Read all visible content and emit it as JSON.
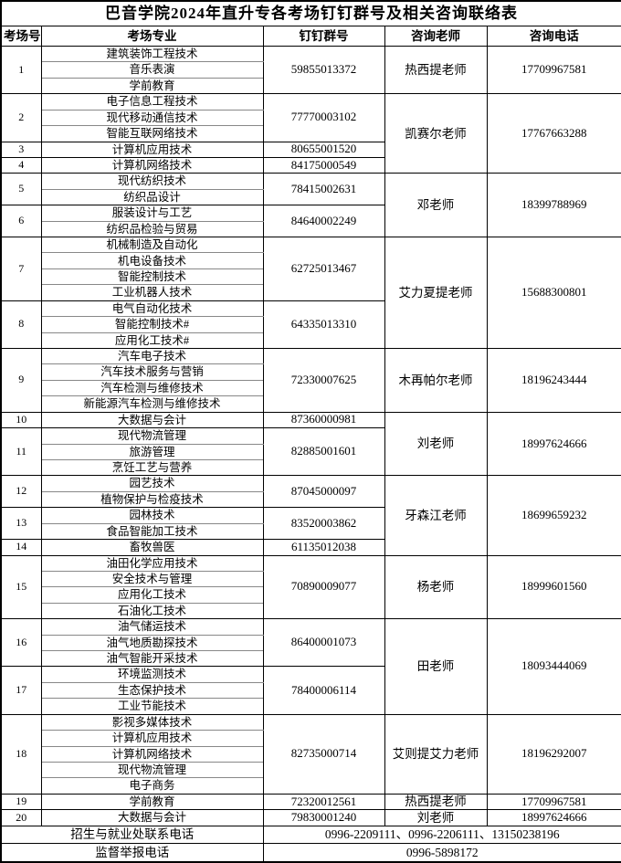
{
  "title": "巴音学院2024年直升专各考场钉钉群号及相关咨询联络表",
  "columns": [
    "考场号",
    "考场专业",
    "钉钉群号",
    "咨询老师",
    "咨询电话"
  ],
  "teacher_groups": [
    {
      "teacher": "热西提老师",
      "phone": "17709967581",
      "rooms": [
        {
          "no": "1",
          "majors": [
            "建筑装饰工程技术",
            "音乐表演",
            "学前教育"
          ],
          "group": "59855013372"
        }
      ]
    },
    {
      "teacher": "凯赛尔老师",
      "phone": "17767663288",
      "rooms": [
        {
          "no": "2",
          "majors": [
            "电子信息工程技术",
            "现代移动通信技术",
            "智能互联网络技术"
          ],
          "group": "77770003102"
        },
        {
          "no": "3",
          "majors": [
            "计算机应用技术"
          ],
          "group": "80655001520"
        },
        {
          "no": "4",
          "majors": [
            "计算机网络技术"
          ],
          "group": "84175000549"
        }
      ]
    },
    {
      "teacher": "邓老师",
      "phone": "18399788969",
      "rooms": [
        {
          "no": "5",
          "majors": [
            "现代纺织技术",
            "纺织品设计"
          ],
          "group": "78415002631"
        },
        {
          "no": "6",
          "majors": [
            "服装设计与工艺",
            "纺织品检验与贸易"
          ],
          "group": "84640002249"
        }
      ]
    },
    {
      "teacher": "艾力夏提老师",
      "phone": "15688300801",
      "rooms": [
        {
          "no": "7",
          "majors": [
            "机械制造及自动化",
            "机电设备技术",
            "智能控制技术",
            "工业机器人技术"
          ],
          "group": "62725013467"
        },
        {
          "no": "8",
          "majors": [
            "电气自动化技术",
            "智能控制技术#",
            "应用化工技术#"
          ],
          "group": "64335013310"
        }
      ]
    },
    {
      "teacher": "木再帕尔老师",
      "phone": "18196243444",
      "rooms": [
        {
          "no": "9",
          "majors": [
            "汽车电子技术",
            "汽车技术服务与营销",
            "汽车检测与维修技术",
            "新能源汽车检测与维修技术"
          ],
          "group": "72330007625"
        }
      ]
    },
    {
      "teacher": "刘老师",
      "phone": "18997624666",
      "rooms": [
        {
          "no": "10",
          "majors": [
            "大数据与会计"
          ],
          "group": "87360000981"
        },
        {
          "no": "11",
          "majors": [
            "现代物流管理",
            "旅游管理",
            "烹饪工艺与营养"
          ],
          "group": "82885001601"
        }
      ]
    },
    {
      "teacher": "牙森江老师",
      "phone": "18699659232",
      "rooms": [
        {
          "no": "12",
          "majors": [
            "园艺技术",
            "植物保护与检疫技术"
          ],
          "group": "87045000097"
        },
        {
          "no": "13",
          "majors": [
            "园林技术",
            "食品智能加工技术"
          ],
          "group": "83520003862"
        },
        {
          "no": "14",
          "majors": [
            "畜牧兽医"
          ],
          "group": "61135012038"
        }
      ]
    },
    {
      "teacher": "杨老师",
      "phone": "18999601560",
      "rooms": [
        {
          "no": "15",
          "majors": [
            "油田化学应用技术",
            "安全技术与管理",
            "应用化工技术",
            "石油化工技术"
          ],
          "group": "70890009077"
        }
      ]
    },
    {
      "teacher": "田老师",
      "phone": "18093444069",
      "rooms": [
        {
          "no": "16",
          "majors": [
            "油气储运技术",
            "油气地质勘探技术",
            "油气智能开采技术"
          ],
          "group": "86400001073"
        },
        {
          "no": "17",
          "majors": [
            "环境监测技术",
            "生态保护技术",
            "工业节能技术"
          ],
          "group": "78400006114"
        }
      ]
    },
    {
      "teacher": "艾则提艾力老师",
      "phone": "18196292007",
      "rooms": [
        {
          "no": "18",
          "majors": [
            "影视多媒体技术",
            "计算机应用技术",
            "计算机网络技术",
            "现代物流管理",
            "电子商务"
          ],
          "group": "82735000714"
        }
      ]
    },
    {
      "teacher": "热西提老师",
      "phone": "17709967581",
      "rooms": [
        {
          "no": "19",
          "majors": [
            "学前教育"
          ],
          "group": "72320012561"
        }
      ]
    },
    {
      "teacher": "刘老师",
      "phone": "18997624666",
      "rooms": [
        {
          "no": "20",
          "majors": [
            "大数据与会计"
          ],
          "group": "79830001240"
        }
      ]
    }
  ],
  "footer_rows": [
    {
      "label": "招生与就业处联系电话",
      "value": "0996-2209111、0996-2206111、13150238196"
    },
    {
      "label": "监督举报电话",
      "value": "0996-5898172"
    }
  ]
}
